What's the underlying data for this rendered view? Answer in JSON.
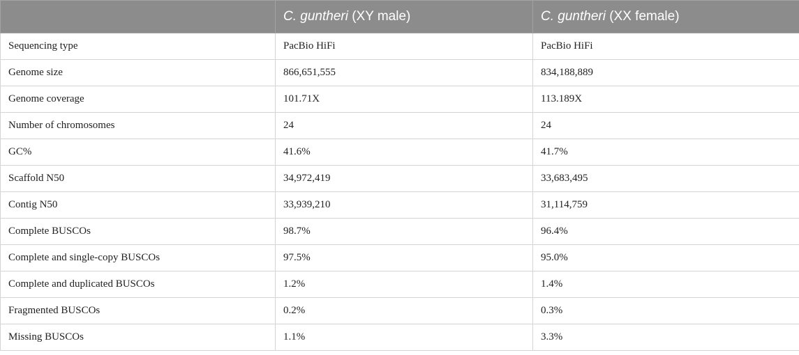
{
  "table": {
    "headers": [
      {
        "text": "",
        "species": "",
        "suffix": ""
      },
      {
        "text": "",
        "species": "C. guntheri",
        "suffix": " (XY male)"
      },
      {
        "text": "",
        "species": "C. guntheri",
        "suffix": " (XX female)"
      }
    ],
    "rows": [
      {
        "label": "Sequencing type",
        "male": "PacBio HiFi",
        "female": "PacBio HiFi"
      },
      {
        "label": "Genome size",
        "male": "866,651,555",
        "female": "834,188,889"
      },
      {
        "label": "Genome coverage",
        "male": "101.71X",
        "female": "113.189X"
      },
      {
        "label": "Number of chromosomes",
        "male": "24",
        "female": "24"
      },
      {
        "label": "GC%",
        "male": "41.6%",
        "female": "41.7%"
      },
      {
        "label": "Scaffold N50",
        "male": "34,972,419",
        "female": "33,683,495"
      },
      {
        "label": "Contig N50",
        "male": "33,939,210",
        "female": "31,114,759"
      },
      {
        "label": "Complete BUSCOs",
        "male": "98.7%",
        "female": "96.4%"
      },
      {
        "label": "Complete and single-copy BUSCOs",
        "male": "97.5%",
        "female": "95.0%"
      },
      {
        "label": "Complete and duplicated BUSCOs",
        "male": "1.2%",
        "female": "1.4%"
      },
      {
        "label": "Fragmented BUSCOs",
        "male": "0.2%",
        "female": "0.3%"
      },
      {
        "label": "Missing BUSCOs",
        "male": "1.1%",
        "female": "3.3%"
      }
    ]
  },
  "colors": {
    "header_bg": "#8c8c8c",
    "header_text": "#ffffff",
    "border": "#d4d4d4"
  }
}
